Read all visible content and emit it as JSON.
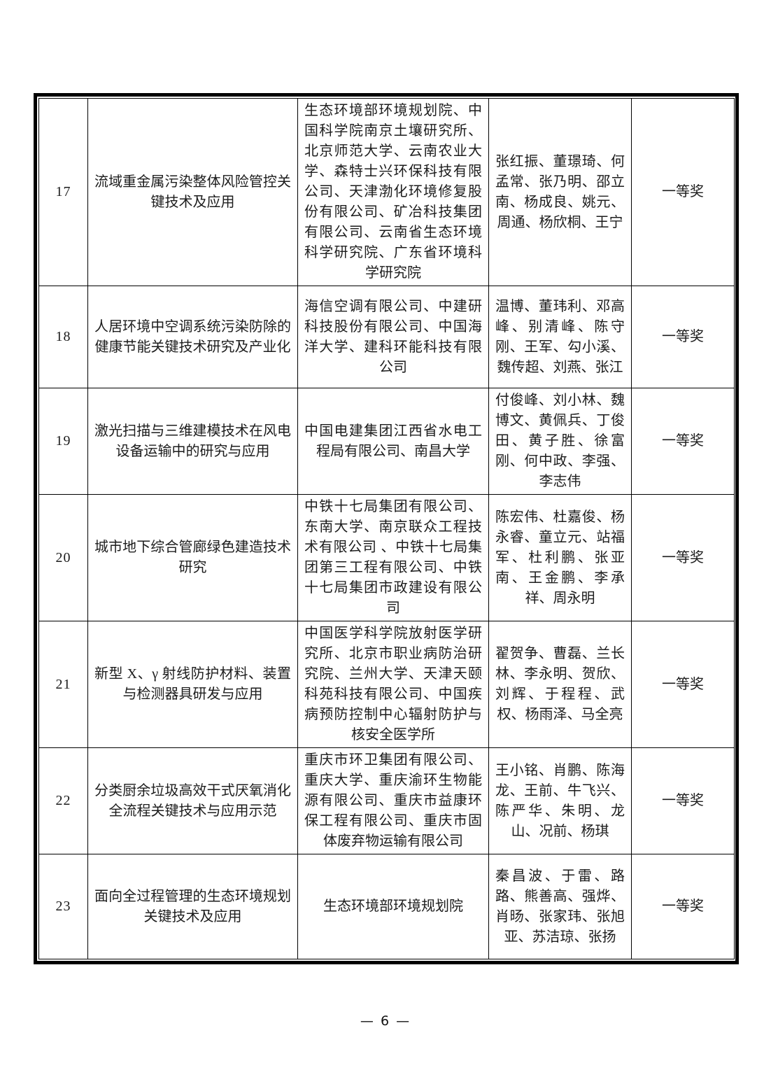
{
  "page": {
    "number_label": "— 6 —"
  },
  "award_color": "#000000",
  "table": {
    "award_rows": [
      {
        "no": "17",
        "title": "流域重金属污染整体风险管控关键技术及应用",
        "orgs": "生态环境部环境规划院、中国科学院南京土壤研究所、北京师范大学、云南农业大学、森特士兴环保科技有限公司、天津渤化环境修复股份有限公司、矿冶科技集团有限公司、云南省生态环境科学研究院、广东省环境科学研究院",
        "people": "张红振、董璟琦、何孟常、张乃明、邵立南、杨成良、姚元、周通、杨欣桐、王宁",
        "award": "一等奖"
      },
      {
        "no": "18",
        "title": "人居环境中空调系统污染防除的健康节能关键技术研究及产业化",
        "orgs": "海信空调有限公司、中建研科技股份有限公司、中国海洋大学、建科环能科技有限公司",
        "people": "温博、董玮利、邓高峰、别清峰、陈守刚、王军、勾小溪、魏传超、刘燕、张江",
        "award": "一等奖"
      },
      {
        "no": "19",
        "title": "激光扫描与三维建模技术在风电设备运输中的研究与应用",
        "orgs": "中国电建集团江西省水电工程局有限公司、南昌大学",
        "people": "付俊峰、刘小林、魏博文、黄佩兵、丁俊田、黄子胜、徐富刚、何中政、李强、李志伟",
        "award": "一等奖"
      },
      {
        "no": "20",
        "title": "城市地下综合管廊绿色建造技术研究",
        "orgs": "中铁十七局集团有限公司、东南大学、南京联众工程技术有限公司 、中铁十七局集团第三工程有限公司、中铁十七局集团市政建设有限公司",
        "people": "陈宏伟、杜嘉俊、杨永睿、童立元、站福军、杜利鹏、张亚南、王金鹏、李承祥、周永明",
        "award": "一等奖"
      },
      {
        "no": "21",
        "title": "新型 X、γ 射线防护材料、装置与检测器具研发与应用",
        "orgs": "中国医学科学院放射医学研究所、北京市职业病防治研究院、兰州大学、天津天颐科苑科技有限公司、中国疾病预防控制中心辐射防护与核安全医学所",
        "people": "翟贺争、曹磊、兰长林、李永明、贺欣、刘辉、于程程、武权、杨雨泽、马全亮",
        "award": "一等奖"
      },
      {
        "no": "22",
        "title": "分类厨余垃圾高效干式厌氧消化全流程关键技术与应用示范",
        "orgs": "重庆市环卫集团有限公司、重庆大学、重庆渝环生物能源有限公司、重庆市益康环保工程有限公司、重庆市固体废弃物运输有限公司",
        "people": "王小铭、肖鹏、陈海龙、王前、牛飞兴、陈严华、朱明、龙山、况前、杨琪",
        "award": "一等奖"
      },
      {
        "no": "23",
        "title": "面向全过程管理的生态环境规划关键技术及应用",
        "orgs": "生态环境部环境规划院",
        "people": "秦昌波、于雷、路路、熊善高、强烨、肖旸、张家玮、张旭亚、苏洁琼、张扬",
        "award": "一等奖"
      }
    ]
  }
}
